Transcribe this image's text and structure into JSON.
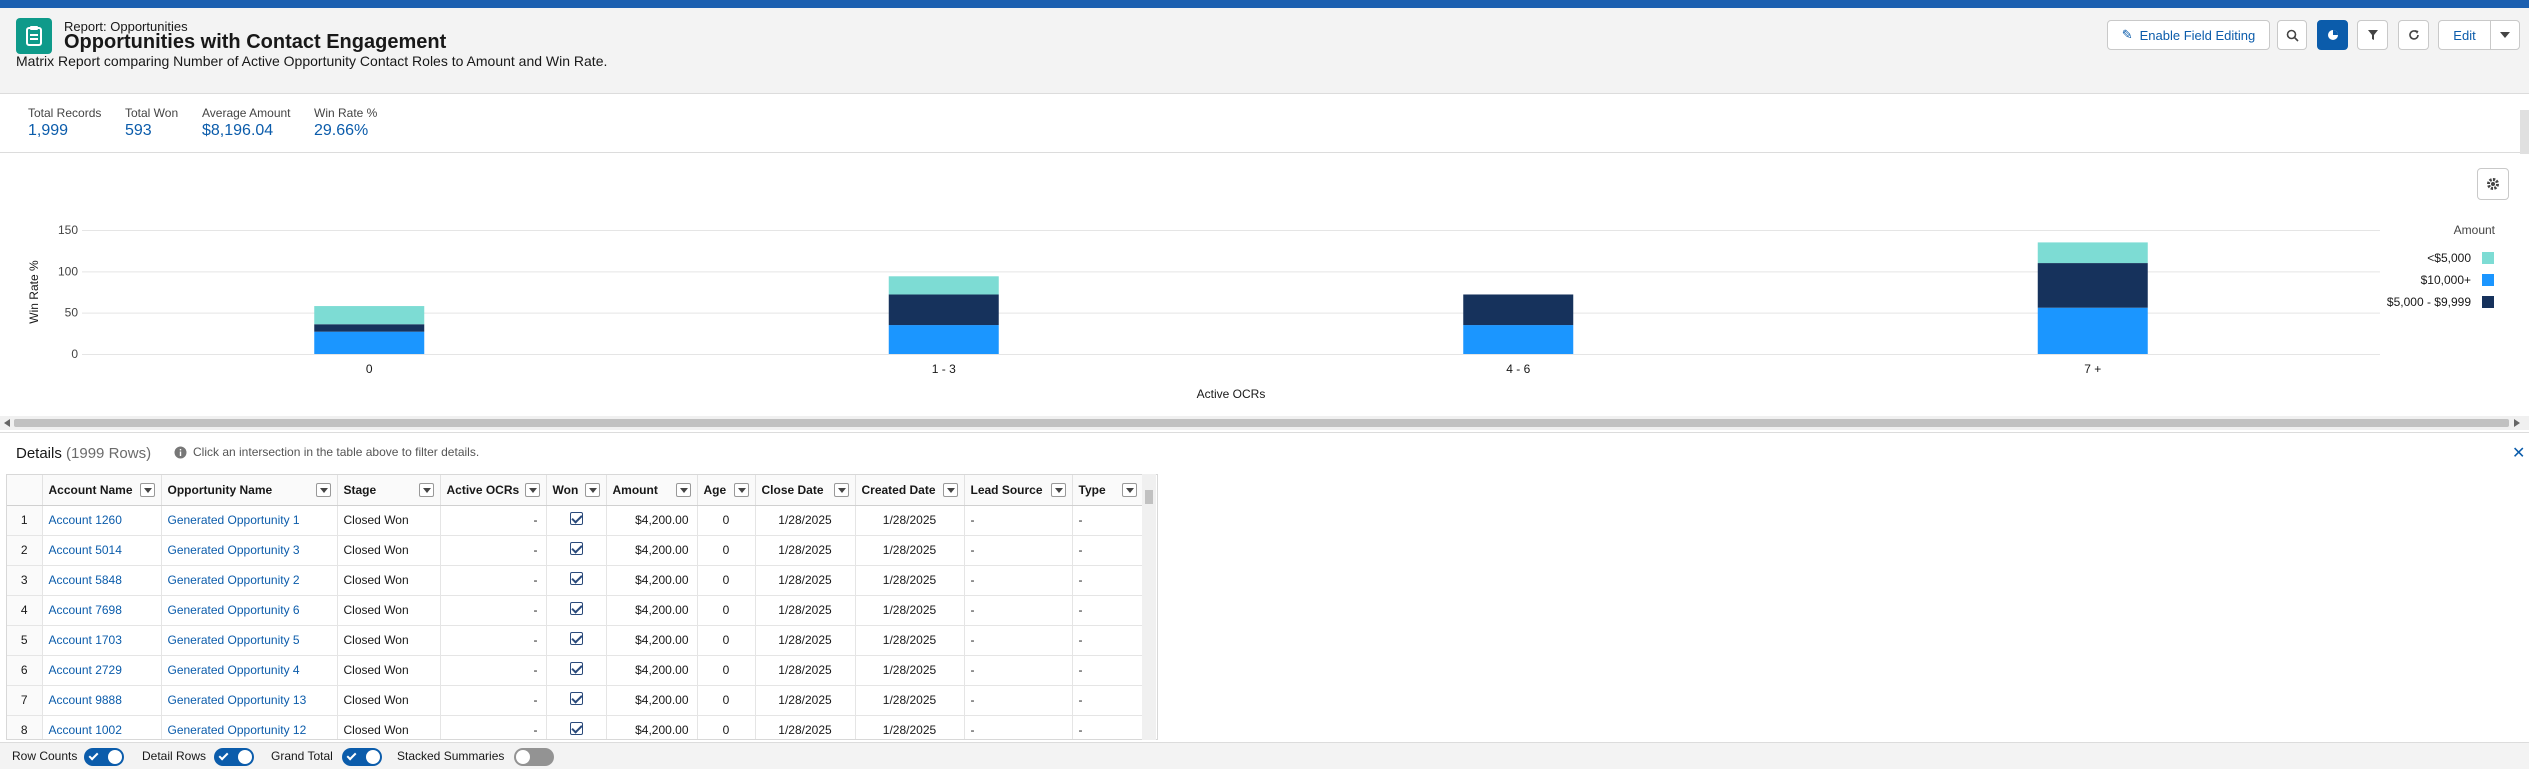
{
  "header": {
    "subtitle": "Report: Opportunities",
    "title": "Opportunities with Contact Engagement",
    "description": "Matrix Report comparing Number of Active Opportunity Contact Roles to Amount and Win Rate.",
    "enable_field_editing": "Enable Field Editing",
    "edit": "Edit"
  },
  "summary": [
    {
      "label": "Total Records",
      "value": "1,999"
    },
    {
      "label": "Total Won",
      "value": "593"
    },
    {
      "label": "Average Amount",
      "value": "$8,196.04"
    },
    {
      "label": "Win Rate %",
      "value": "29.66%"
    }
  ],
  "chart_data": {
    "type": "bar",
    "stacked": true,
    "categories": [
      "0",
      "1 - 3",
      "4 - 6",
      "7 +"
    ],
    "xlabel": "Active OCRs",
    "ylabel": "Win Rate %",
    "yticks": [
      0,
      50,
      100,
      150
    ],
    "ylim": [
      0,
      150
    ],
    "legend_title": "Amount",
    "legend_position": "right",
    "series": [
      {
        "name": "<$5,000",
        "color": "#7ddcd4",
        "values": [
          22,
          22,
          0,
          25
        ]
      },
      {
        "name": "$10,000+",
        "color": "#1b96ff",
        "values": [
          27,
          35,
          35,
          56
        ]
      },
      {
        "name": "$5,000 - $9,999",
        "color": "#16325c",
        "values": [
          9,
          37,
          37,
          54
        ]
      }
    ]
  },
  "details": {
    "title": "Details",
    "count": "(1999 Rows)",
    "hint": "Click an intersection in the table above to filter details."
  },
  "table": {
    "columns": [
      "Account Name",
      "Opportunity Name",
      "Stage",
      "Active OCRs",
      "Won",
      "Amount",
      "Age",
      "Close Date",
      "Created Date",
      "Lead Source",
      "Type"
    ],
    "rows": [
      [
        "1",
        "Account 1260",
        "Generated Opportunity 1",
        "Closed Won",
        "-",
        "",
        "$4,200.00",
        "0",
        "1/28/2025",
        "1/28/2025",
        "-",
        "-"
      ],
      [
        "2",
        "Account 5014",
        "Generated Opportunity 3",
        "Closed Won",
        "-",
        "",
        "$4,200.00",
        "0",
        "1/28/2025",
        "1/28/2025",
        "-",
        "-"
      ],
      [
        "3",
        "Account 5848",
        "Generated Opportunity 2",
        "Closed Won",
        "-",
        "",
        "$4,200.00",
        "0",
        "1/28/2025",
        "1/28/2025",
        "-",
        "-"
      ],
      [
        "4",
        "Account 7698",
        "Generated Opportunity 6",
        "Closed Won",
        "-",
        "",
        "$4,200.00",
        "0",
        "1/28/2025",
        "1/28/2025",
        "-",
        "-"
      ],
      [
        "5",
        "Account 1703",
        "Generated Opportunity 5",
        "Closed Won",
        "-",
        "",
        "$4,200.00",
        "0",
        "1/28/2025",
        "1/28/2025",
        "-",
        "-"
      ],
      [
        "6",
        "Account 2729",
        "Generated Opportunity 4",
        "Closed Won",
        "-",
        "",
        "$4,200.00",
        "0",
        "1/28/2025",
        "1/28/2025",
        "-",
        "-"
      ],
      [
        "7",
        "Account 9888",
        "Generated Opportunity 13",
        "Closed Won",
        "-",
        "",
        "$4,200.00",
        "0",
        "1/28/2025",
        "1/28/2025",
        "-",
        "-"
      ],
      [
        "8",
        "Account 1002",
        "Generated Opportunity 12",
        "Closed Won",
        "-",
        "",
        "$4,200.00",
        "0",
        "1/28/2025",
        "1/28/2025",
        "-",
        "-"
      ]
    ]
  },
  "footer": {
    "row_counts": "Row Counts",
    "detail_rows": "Detail Rows",
    "grand_total": "Grand Total",
    "stacked_summaries": "Stacked Summaries"
  }
}
